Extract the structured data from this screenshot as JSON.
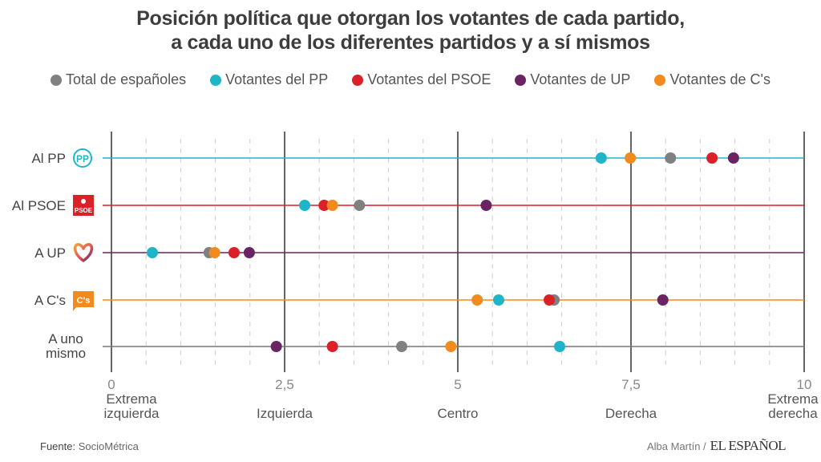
{
  "chart_data": {
    "type": "scatter",
    "title_line1": "Posición política que otorgan los votantes de cada partido,",
    "title_line2": "a cada uno de los diferentes partidos y a sí mismos",
    "xlabel": "",
    "ylabel": "",
    "xlim": [
      0,
      10
    ],
    "x_ticks": [
      {
        "value": 0,
        "label": "0",
        "category": [
          "Extrema",
          "izquierda"
        ]
      },
      {
        "value": 2.5,
        "label": "2,5",
        "category": [
          "Izquierda"
        ]
      },
      {
        "value": 5,
        "label": "5",
        "category": [
          "Centro"
        ]
      },
      {
        "value": 7.5,
        "label": "7,5",
        "category": [
          "Derecha"
        ]
      },
      {
        "value": 10,
        "label": "10",
        "category": [
          "Extrema",
          "derecha"
        ]
      }
    ],
    "minor_grid_step": 0.5,
    "grid": true,
    "legend_position": "top-center",
    "series": [
      {
        "name": "Total de españoles",
        "color": "#808080"
      },
      {
        "name": "Votantes del PP",
        "color": "#1fb5c9"
      },
      {
        "name": "Votantes del PSOE",
        "color": "#dc2027"
      },
      {
        "name": "Votantes de UP",
        "color": "#6a2463"
      },
      {
        "name": "Votantes de C's",
        "color": "#f28a1e"
      }
    ],
    "rows": [
      {
        "label": [
          "Al PP"
        ],
        "icon": "pp-logo-icon",
        "line_color": "#1fb5c9",
        "values": {
          "Total de españoles": 8.07,
          "Votantes del PP": 7.07,
          "Votantes del PSOE": 8.67,
          "Votantes de UP": 8.98,
          "Votantes de C's": 7.49
        }
      },
      {
        "label": [
          "Al PSOE"
        ],
        "icon": "psoe-logo-icon",
        "line_color": "#dc2027",
        "values": {
          "Total de españoles": 3.58,
          "Votantes del PP": 2.79,
          "Votantes del PSOE": 3.07,
          "Votantes de UP": 5.41,
          "Votantes de C's": 3.19
        }
      },
      {
        "label": [
          "A UP"
        ],
        "icon": "up-heart-logo-icon",
        "line_color": "#6a2463",
        "values": {
          "Total de españoles": 1.41,
          "Votantes del PP": 0.59,
          "Votantes del PSOE": 1.77,
          "Votantes de UP": 1.99,
          "Votantes de C's": 1.49
        }
      },
      {
        "label": [
          "A C's"
        ],
        "icon": "cs-logo-icon",
        "line_color": "#f28a1e",
        "values": {
          "Total de españoles": 6.39,
          "Votantes del PP": 5.59,
          "Votantes del PSOE": 6.32,
          "Votantes de UP": 7.96,
          "Votantes de C's": 5.28
        }
      },
      {
        "label": [
          "A uno",
          "mismo"
        ],
        "icon": null,
        "line_color": "#777777",
        "values": {
          "Total de españoles": 4.19,
          "Votantes del PP": 6.47,
          "Votantes del PSOE": 3.19,
          "Votantes de UP": 2.38,
          "Votantes de C's": 4.9
        }
      }
    ]
  },
  "logos": {
    "pp": "PP",
    "psoe": "PSOE",
    "cs": "C's"
  },
  "footer": {
    "source_label": "Fuente:",
    "source_value": "SocioMétrica",
    "author": "Alba Martín /",
    "brand": "EL ESPAÑOL"
  }
}
